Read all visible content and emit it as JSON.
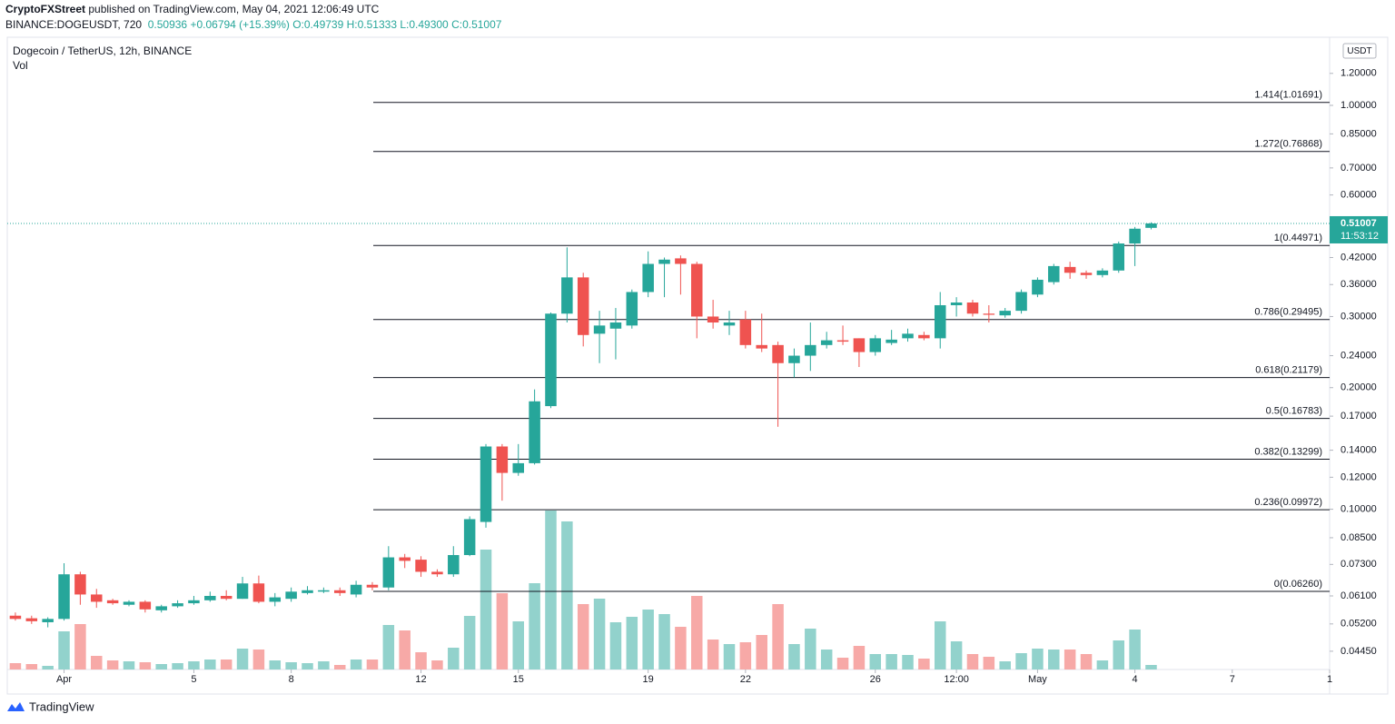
{
  "header": {
    "author": "CryptoFXStreet",
    "published": "published on TradingView.com, May 04, 2021 12:06:49 UTC",
    "symbol": "BINANCE:DOGEUSDT, 720",
    "price": "0.50936",
    "change": "+0.06794 (+15.39%)",
    "ohlc": [
      "O:0.49739",
      "H:0.51333",
      "L:0.49300",
      "C:0.51007"
    ]
  },
  "footer": {
    "brand": "TradingView"
  },
  "chart_data": {
    "type": "candlestick",
    "title": "Dogecoin / TetherUS, 12h, BINANCE",
    "volume_label": "Vol",
    "y_unit": "USDT",
    "log_scale": true,
    "ylim": [
      0.0401,
      1.467
    ],
    "yticks": [
      {
        "value": 1.2,
        "label": "1.20000"
      },
      {
        "value": 1.0,
        "label": "1.00000"
      },
      {
        "value": 0.85,
        "label": "0.85000"
      },
      {
        "value": 0.7,
        "label": "0.70000"
      },
      {
        "value": 0.6,
        "label": "0.60000"
      },
      {
        "value": 0.42,
        "label": "0.42000"
      },
      {
        "value": 0.36,
        "label": "0.36000"
      },
      {
        "value": 0.3,
        "label": "0.30000"
      },
      {
        "value": 0.24,
        "label": "0.24000"
      },
      {
        "value": 0.2,
        "label": "0.20000"
      },
      {
        "value": 0.17,
        "label": "0.17000"
      },
      {
        "value": 0.14,
        "label": "0.14000"
      },
      {
        "value": 0.12,
        "label": "0.12000"
      },
      {
        "value": 0.1,
        "label": "0.10000"
      },
      {
        "value": 0.085,
        "label": "0.08500"
      },
      {
        "value": 0.073,
        "label": "0.07300"
      },
      {
        "value": 0.061,
        "label": "0.06100"
      },
      {
        "value": 0.052,
        "label": "0.05200"
      },
      {
        "value": 0.0445,
        "label": "0.04450"
      }
    ],
    "xlim": [
      -0.5,
      81
    ],
    "xticks": [
      {
        "value": 3,
        "label": "Apr"
      },
      {
        "value": 11,
        "label": "5"
      },
      {
        "value": 17,
        "label": "8"
      },
      {
        "value": 25,
        "label": "12"
      },
      {
        "value": 31,
        "label": "15"
      },
      {
        "value": 39,
        "label": "19"
      },
      {
        "value": 45,
        "label": "22"
      },
      {
        "value": 53,
        "label": "26"
      },
      {
        "value": 58,
        "label": "12:00"
      },
      {
        "value": 63,
        "label": "May"
      },
      {
        "value": 69,
        "label": "4"
      },
      {
        "value": 75,
        "label": "7"
      },
      {
        "value": 81,
        "label": "1"
      }
    ],
    "up_color": "#26a69a",
    "down_color": "#ef5350",
    "volume_up_color": "#92d2cc",
    "volume_down_color": "#f7a9a7",
    "open": [
      0.0545,
      0.0537,
      0.0525,
      0.0535,
      0.069,
      0.0615,
      0.0595,
      0.058,
      0.059,
      0.0562,
      0.0575,
      0.0585,
      0.0595,
      0.061,
      0.06,
      0.0655,
      0.059,
      0.06,
      0.062,
      0.0625,
      0.063,
      0.0615,
      0.065,
      0.064,
      0.076,
      0.075,
      0.07,
      0.069,
      0.077,
      0.093,
      0.143,
      0.123,
      0.13,
      0.18,
      0.305,
      0.375,
      0.272,
      0.28,
      0.285,
      0.345,
      0.405,
      0.418,
      0.405,
      0.3,
      0.285,
      0.295,
      0.255,
      0.255,
      0.23,
      0.24,
      0.255,
      0.262,
      0.265,
      0.245,
      0.258,
      0.265,
      0.27,
      0.265,
      0.32,
      0.325,
      0.305,
      0.302,
      0.31,
      0.34,
      0.365,
      0.398,
      0.385,
      0.38,
      0.39,
      0.455,
      0.49739
    ],
    "high": [
      0.0555,
      0.0545,
      0.054,
      0.0735,
      0.07,
      0.0635,
      0.06,
      0.0595,
      0.0595,
      0.058,
      0.0595,
      0.061,
      0.0625,
      0.063,
      0.068,
      0.0685,
      0.062,
      0.064,
      0.0645,
      0.064,
      0.064,
      0.0665,
      0.066,
      0.081,
      0.0775,
      0.0765,
      0.071,
      0.081,
      0.096,
      0.145,
      0.145,
      0.145,
      0.198,
      0.307,
      0.445,
      0.385,
      0.31,
      0.315,
      0.35,
      0.435,
      0.42,
      0.425,
      0.41,
      0.33,
      0.31,
      0.31,
      0.305,
      0.26,
      0.25,
      0.29,
      0.275,
      0.285,
      0.265,
      0.27,
      0.278,
      0.28,
      0.275,
      0.345,
      0.335,
      0.33,
      0.32,
      0.315,
      0.35,
      0.375,
      0.405,
      0.41,
      0.39,
      0.395,
      0.46,
      0.5,
      0.51333
    ],
    "low": [
      0.053,
      0.052,
      0.051,
      0.053,
      0.058,
      0.057,
      0.058,
      0.0575,
      0.0555,
      0.0555,
      0.057,
      0.058,
      0.059,
      0.0595,
      0.06,
      0.0585,
      0.0575,
      0.059,
      0.0615,
      0.062,
      0.061,
      0.0605,
      0.063,
      0.063,
      0.0715,
      0.068,
      0.068,
      0.068,
      0.0765,
      0.09,
      0.105,
      0.121,
      0.129,
      0.178,
      0.29,
      0.253,
      0.23,
      0.235,
      0.28,
      0.335,
      0.335,
      0.34,
      0.265,
      0.28,
      0.27,
      0.25,
      0.245,
      0.16,
      0.212,
      0.22,
      0.25,
      0.255,
      0.225,
      0.24,
      0.255,
      0.26,
      0.262,
      0.25,
      0.3,
      0.3,
      0.29,
      0.298,
      0.305,
      0.335,
      0.36,
      0.372,
      0.372,
      0.375,
      0.385,
      0.4,
      0.493
    ],
    "close": [
      0.0535,
      0.0528,
      0.0535,
      0.069,
      0.0615,
      0.059,
      0.0585,
      0.059,
      0.0565,
      0.0575,
      0.0585,
      0.0595,
      0.061,
      0.06,
      0.0655,
      0.059,
      0.0605,
      0.0625,
      0.063,
      0.063,
      0.062,
      0.065,
      0.064,
      0.076,
      0.0745,
      0.07,
      0.069,
      0.077,
      0.0945,
      0.143,
      0.123,
      0.13,
      0.185,
      0.305,
      0.375,
      0.27,
      0.285,
      0.29,
      0.345,
      0.405,
      0.415,
      0.405,
      0.3,
      0.29,
      0.29,
      0.255,
      0.25,
      0.23,
      0.24,
      0.255,
      0.262,
      0.26,
      0.245,
      0.265,
      0.263,
      0.272,
      0.265,
      0.32,
      0.325,
      0.305,
      0.303,
      0.31,
      0.345,
      0.37,
      0.4,
      0.385,
      0.38,
      0.39,
      0.455,
      0.495,
      0.51007
    ],
    "volume": [
      7,
      6,
      4,
      42,
      50,
      15,
      10,
      9,
      8,
      6,
      7,
      9,
      11,
      11,
      23,
      22,
      10,
      8,
      7,
      9,
      5,
      11,
      11,
      49,
      43,
      19,
      10,
      24,
      59,
      132,
      84,
      53,
      95,
      175,
      163,
      72,
      78,
      52,
      58,
      66,
      61,
      47,
      81,
      33,
      28,
      30,
      38,
      72,
      28,
      45,
      22,
      13,
      26,
      17,
      17,
      16,
      12,
      53,
      31,
      17,
      14,
      9,
      18,
      23,
      22,
      22,
      17,
      10,
      32,
      44,
      5
    ],
    "fib_levels": [
      {
        "value": 1.01691,
        "label": "1.414(1.01691)"
      },
      {
        "value": 0.76868,
        "label": "1.272(0.76868)"
      },
      {
        "value": 0.44971,
        "label": "1(0.44971)"
      },
      {
        "value": 0.29495,
        "label": "0.786(0.29495)"
      },
      {
        "value": 0.21179,
        "label": "0.618(0.21179)"
      },
      {
        "value": 0.16783,
        "label": "0.5(0.16783)"
      },
      {
        "value": 0.13299,
        "label": "0.382(0.13299)"
      },
      {
        "value": 0.09972,
        "label": "0.236(0.09972)"
      },
      {
        "value": 0.0626,
        "label": "0(0.06260)"
      }
    ],
    "last_price": 0.51007,
    "countdown": "11:53:12"
  }
}
